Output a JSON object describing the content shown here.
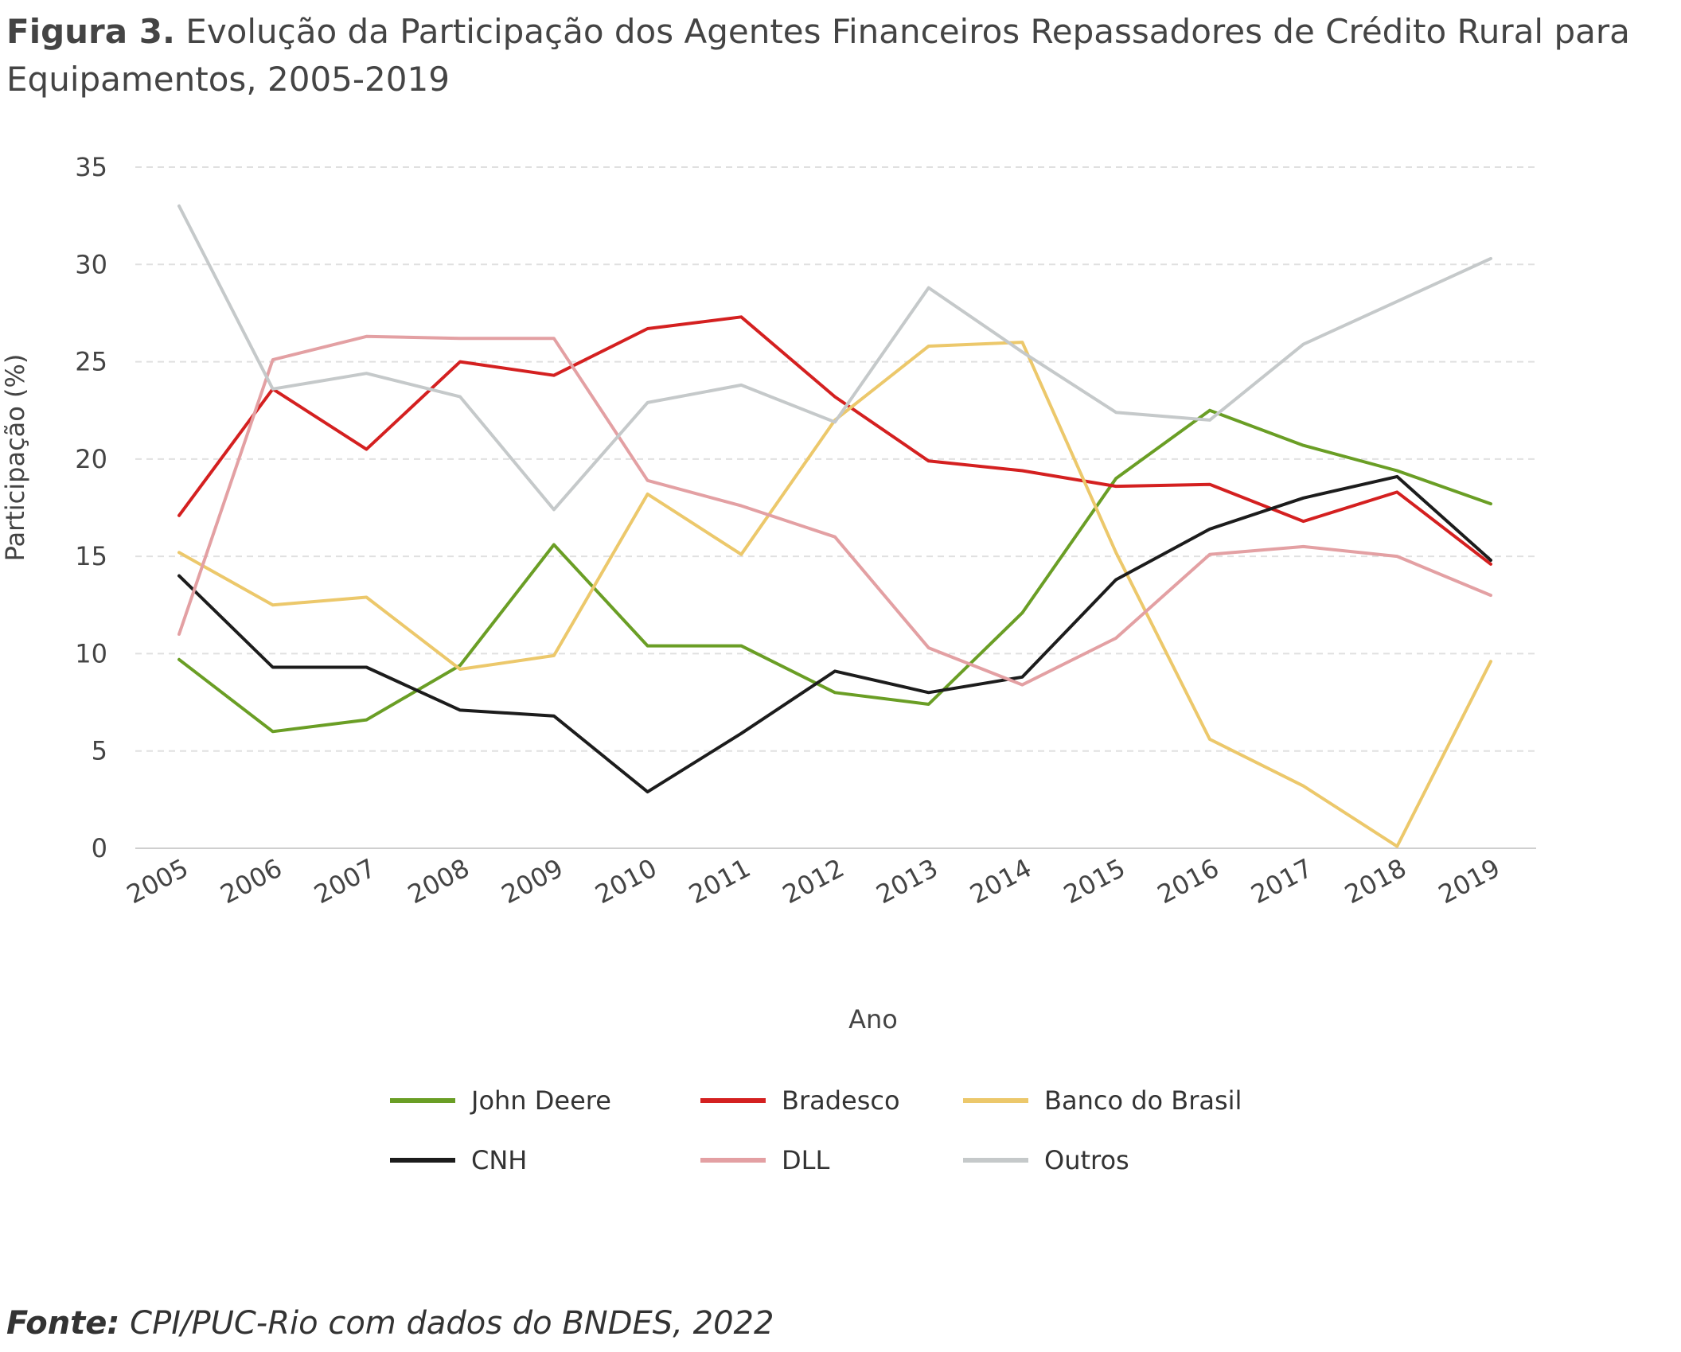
{
  "figure": {
    "label": "Figura 3.",
    "title": "Evolução da Participação dos Agentes Financeiros Repassadores de Crédito Rural para Equipamentos, 2005-2019"
  },
  "source": {
    "label": "Fonte:",
    "text": "CPI/PUC-Rio com dados do BNDES, 2022"
  },
  "chart_data": {
    "type": "line",
    "xlabel": "Ano",
    "ylabel": "Participação (%)",
    "ylim": [
      0,
      35
    ],
    "yticks": [
      0,
      5,
      10,
      15,
      20,
      25,
      30,
      35
    ],
    "grid": "horizontal dashed",
    "legend_position": "bottom",
    "x": [
      "2005",
      "2006",
      "2007",
      "2008",
      "2009",
      "2010",
      "2011",
      "2012",
      "2013",
      "2014",
      "2015",
      "2016",
      "2017",
      "2018",
      "2019"
    ],
    "series": [
      {
        "name": "John Deere",
        "color": "#6a9e25",
        "values": [
          9.7,
          6.0,
          6.6,
          9.4,
          15.6,
          10.4,
          10.4,
          8.0,
          7.4,
          12.1,
          19.0,
          22.5,
          20.7,
          19.4,
          17.7
        ]
      },
      {
        "name": "Bradesco",
        "color": "#d42020",
        "values": [
          17.1,
          23.6,
          20.5,
          25.0,
          24.3,
          26.7,
          27.3,
          23.2,
          19.9,
          19.4,
          18.6,
          18.7,
          16.8,
          18.3,
          14.6
        ]
      },
      {
        "name": "Banco do Brasil",
        "color": "#ecc86b",
        "values": [
          15.2,
          12.5,
          12.9,
          9.2,
          9.9,
          18.2,
          15.1,
          22.0,
          25.8,
          26.0,
          15.2,
          5.6,
          3.2,
          0.1,
          9.6
        ]
      },
      {
        "name": "CNH",
        "color": "#1c1c1c",
        "values": [
          14.0,
          9.3,
          9.3,
          7.1,
          6.8,
          2.9,
          5.9,
          9.1,
          8.0,
          8.8,
          13.8,
          16.4,
          18.0,
          19.1,
          14.8
        ]
      },
      {
        "name": "DLL",
        "color": "#e3a0a3",
        "values": [
          11.0,
          25.1,
          26.3,
          26.2,
          26.2,
          18.9,
          17.6,
          16.0,
          10.3,
          8.4,
          10.8,
          15.1,
          15.5,
          15.0,
          13.0
        ]
      },
      {
        "name": "Outros",
        "color": "#c5c9ca",
        "values": [
          33.0,
          23.6,
          24.4,
          23.2,
          17.4,
          22.9,
          23.8,
          21.9,
          28.8,
          25.5,
          22.4,
          22.0,
          25.9,
          28.1,
          30.3
        ]
      }
    ]
  }
}
